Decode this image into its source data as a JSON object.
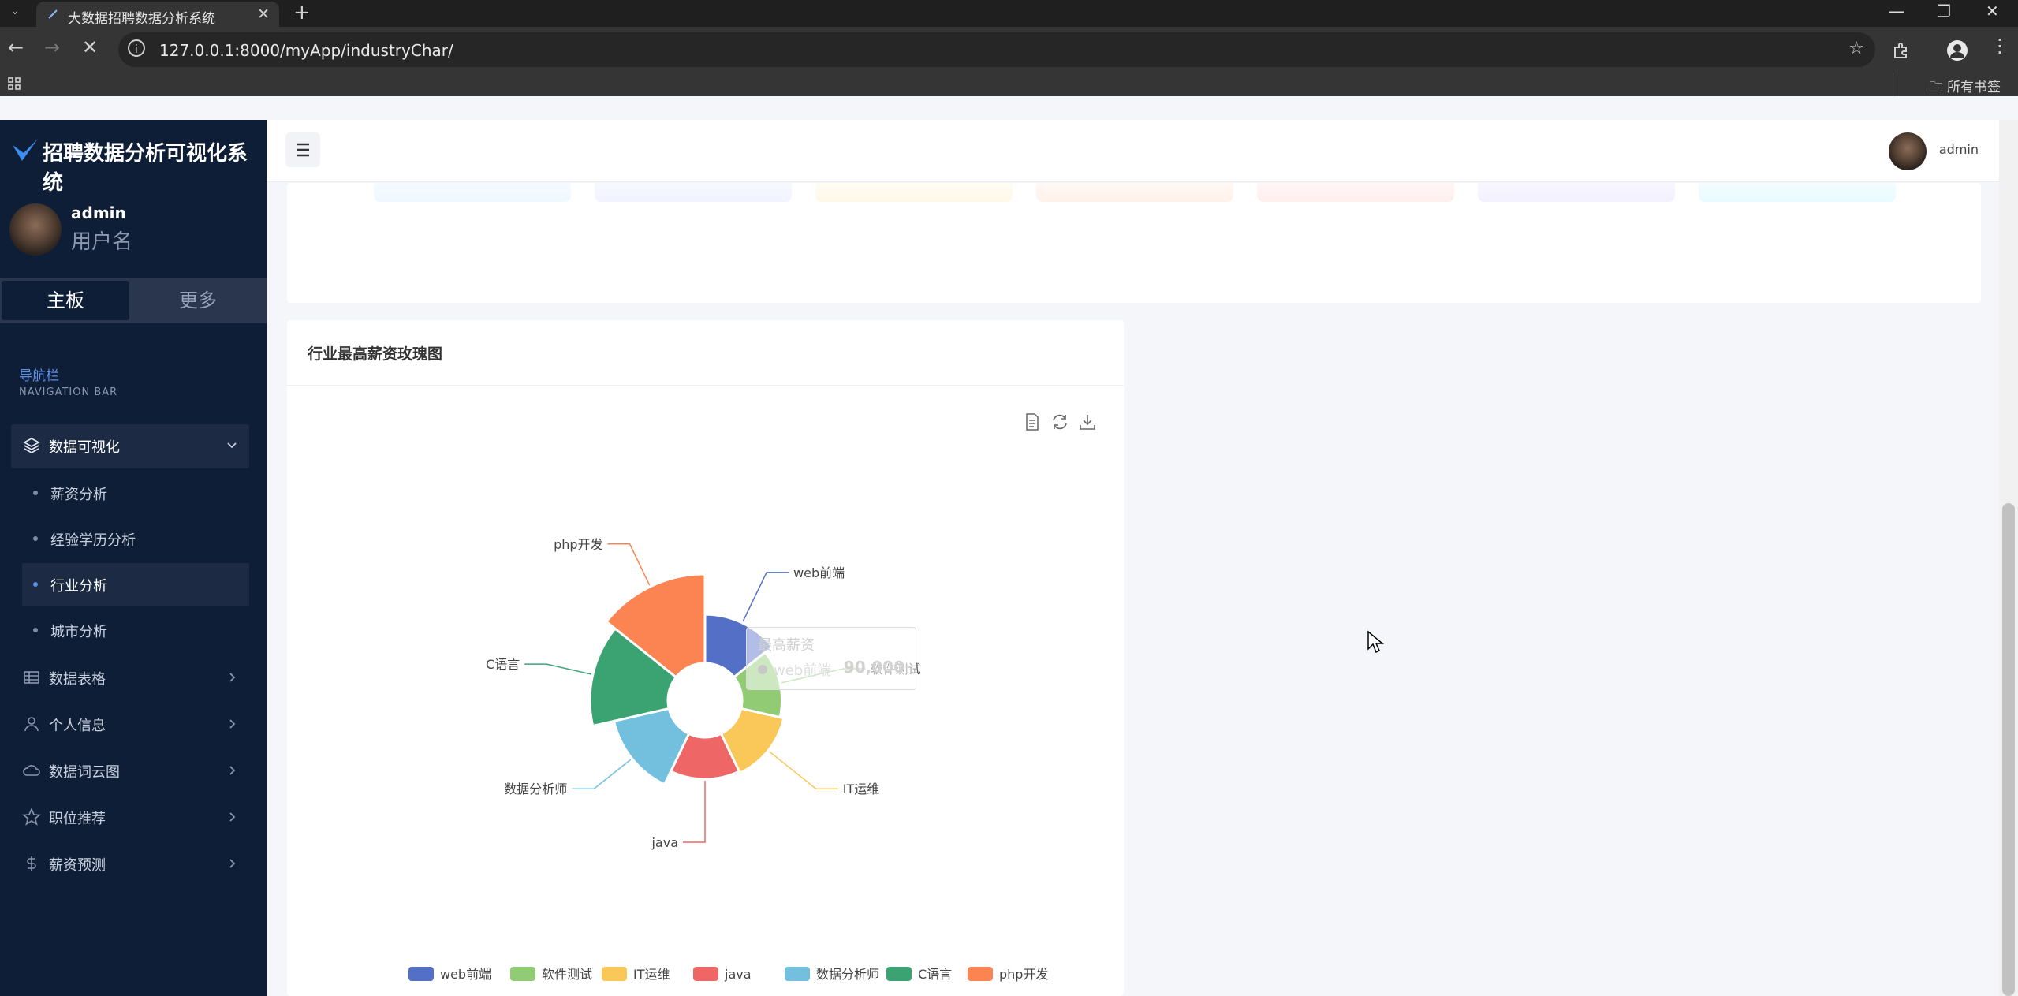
{
  "browser": {
    "tab_title": "大数据招聘数据分析系统",
    "url": "127.0.0.1:8000/myApp/industryChar/",
    "bookmarks_label": "所有书签"
  },
  "brand": {
    "title": "招聘数据分析可视化系统"
  },
  "user": {
    "name": "admin",
    "role": "用户名"
  },
  "switcher": {
    "main": "主板",
    "more": "更多"
  },
  "nav": {
    "title": "导航栏",
    "subtitle": "NAVIGATION BAR",
    "open_menu": {
      "label": "数据可视化",
      "icon": "layers-icon"
    },
    "sub_items": [
      {
        "label": "薪资分析",
        "active": false
      },
      {
        "label": "经验学历分析",
        "active": false
      },
      {
        "label": "行业分析",
        "active": true
      },
      {
        "label": "城市分析",
        "active": false
      }
    ],
    "menus": [
      {
        "label": "数据表格",
        "icon": "table-icon"
      },
      {
        "label": "个人信息",
        "icon": "user-icon"
      },
      {
        "label": "数据词云图",
        "icon": "cloud-icon"
      },
      {
        "label": "职位推荐",
        "icon": "star-icon"
      },
      {
        "label": "薪资预测",
        "icon": "dollar-icon"
      }
    ]
  },
  "header": {
    "user_name": "admin"
  },
  "chart_card": {
    "title": "行业最高薪资玫瑰图",
    "tooltip": {
      "title": "最高薪资",
      "name": "web前端",
      "value": "90,000"
    }
  },
  "chart_data": {
    "type": "pie",
    "rose": true,
    "title": "行业最高薪资玫瑰图",
    "categories": [
      "web前端",
      "软件测试",
      "IT运维",
      "java",
      "数据分析师",
      "C语言",
      "php开发"
    ],
    "colors": [
      "#5470c6",
      "#91cc75",
      "#fac858",
      "#ee6666",
      "#73c0de",
      "#3ba272",
      "#fc8452"
    ],
    "values": [
      90000,
      60000,
      72000,
      66000,
      120000,
      230000,
      300000
    ],
    "legend_position": "bottom"
  }
}
